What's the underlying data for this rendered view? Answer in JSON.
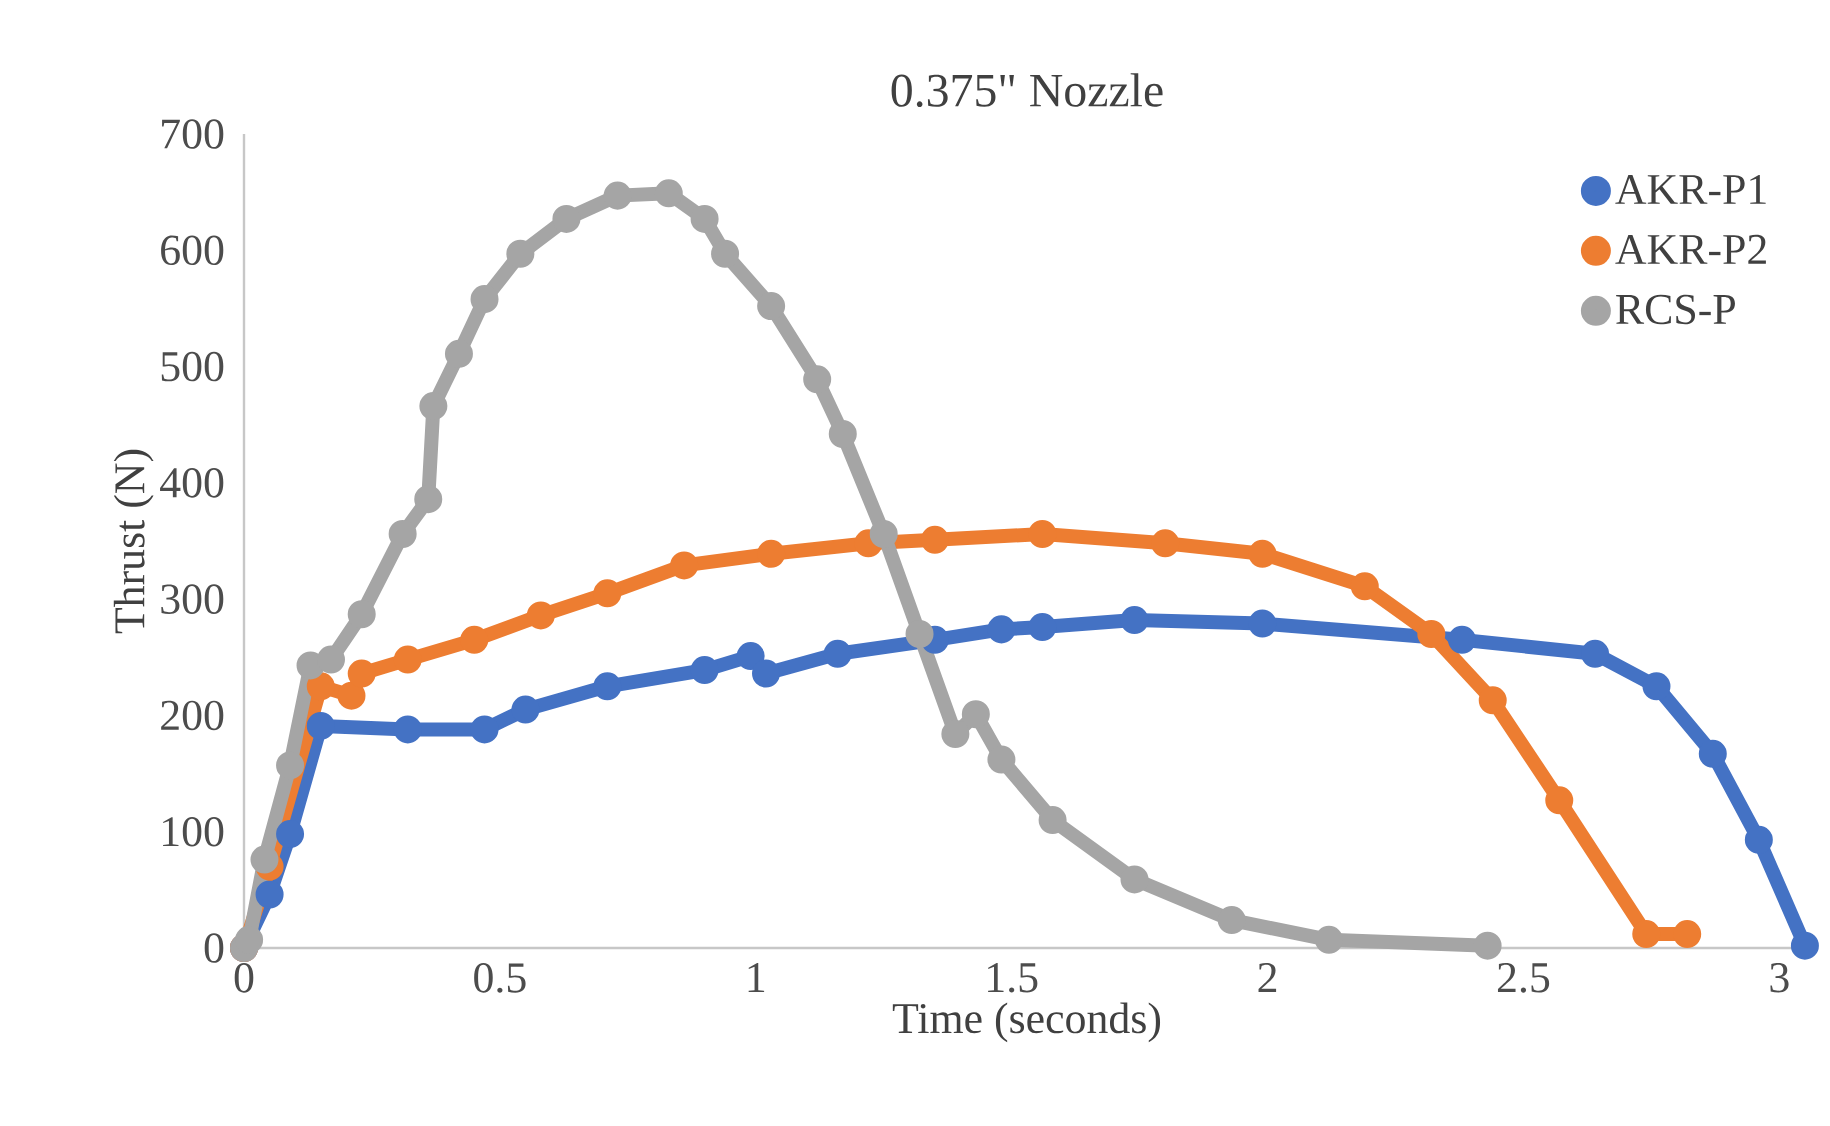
{
  "chart_data": {
    "type": "line",
    "title": "0.375\" Nozzle",
    "xlabel": "Time (seconds)",
    "ylabel": "Thrust (N)",
    "xlim": [
      0,
      3.06
    ],
    "ylim": [
      0,
      700
    ],
    "xticks": [
      0,
      0.5,
      1,
      1.5,
      2,
      2.5,
      3
    ],
    "yticks": [
      0,
      100,
      200,
      300,
      400,
      500,
      600,
      700
    ],
    "legend": "top right",
    "marker": "circle",
    "series": [
      {
        "name": "AKR-P1",
        "color": "#4472c4",
        "x": [
          0,
          0.05,
          0.09,
          0.15,
          0.32,
          0.47,
          0.55,
          0.71,
          0.9,
          0.99,
          1.02,
          1.16,
          1.35,
          1.48,
          1.56,
          1.74,
          1.99,
          2.38,
          2.64,
          2.76,
          2.87,
          2.96,
          3.05
        ],
        "values": [
          0,
          46,
          98,
          191,
          188,
          188,
          205,
          225,
          239,
          251,
          236,
          253,
          265,
          274,
          276,
          282,
          279,
          265,
          253,
          225,
          167,
          93,
          2
        ]
      },
      {
        "name": "AKR-P2",
        "color": "#ed7d31",
        "x": [
          0,
          0.05,
          0.15,
          0.21,
          0.23,
          0.32,
          0.45,
          0.58,
          0.71,
          0.86,
          1.03,
          1.22,
          1.35,
          1.56,
          1.8,
          1.99,
          2.19,
          2.32,
          2.44,
          2.57,
          2.74,
          2.82
        ],
        "values": [
          0,
          70,
          225,
          217,
          236,
          248,
          265,
          286,
          305,
          329,
          339,
          348,
          351,
          356,
          348,
          339,
          311,
          270,
          213,
          127,
          12,
          12
        ]
      },
      {
        "name": "RCS-P",
        "color": "#a5a5a5",
        "x": [
          0,
          0.01,
          0.04,
          0.09,
          0.13,
          0.17,
          0.23,
          0.31,
          0.36,
          0.37,
          0.42,
          0.47,
          0.54,
          0.63,
          0.73,
          0.83,
          0.9,
          0.94,
          1.03,
          1.12,
          1.17,
          1.25,
          1.32,
          1.39,
          1.43,
          1.48,
          1.58,
          1.74,
          1.93,
          2.12,
          2.43
        ],
        "values": [
          0,
          7,
          76,
          157,
          243,
          248,
          287,
          356,
          386,
          466,
          511,
          558,
          597,
          627,
          647,
          649,
          627,
          597,
          552,
          489,
          442,
          356,
          270,
          184,
          201,
          162,
          110,
          59,
          24,
          7,
          2
        ]
      }
    ]
  }
}
